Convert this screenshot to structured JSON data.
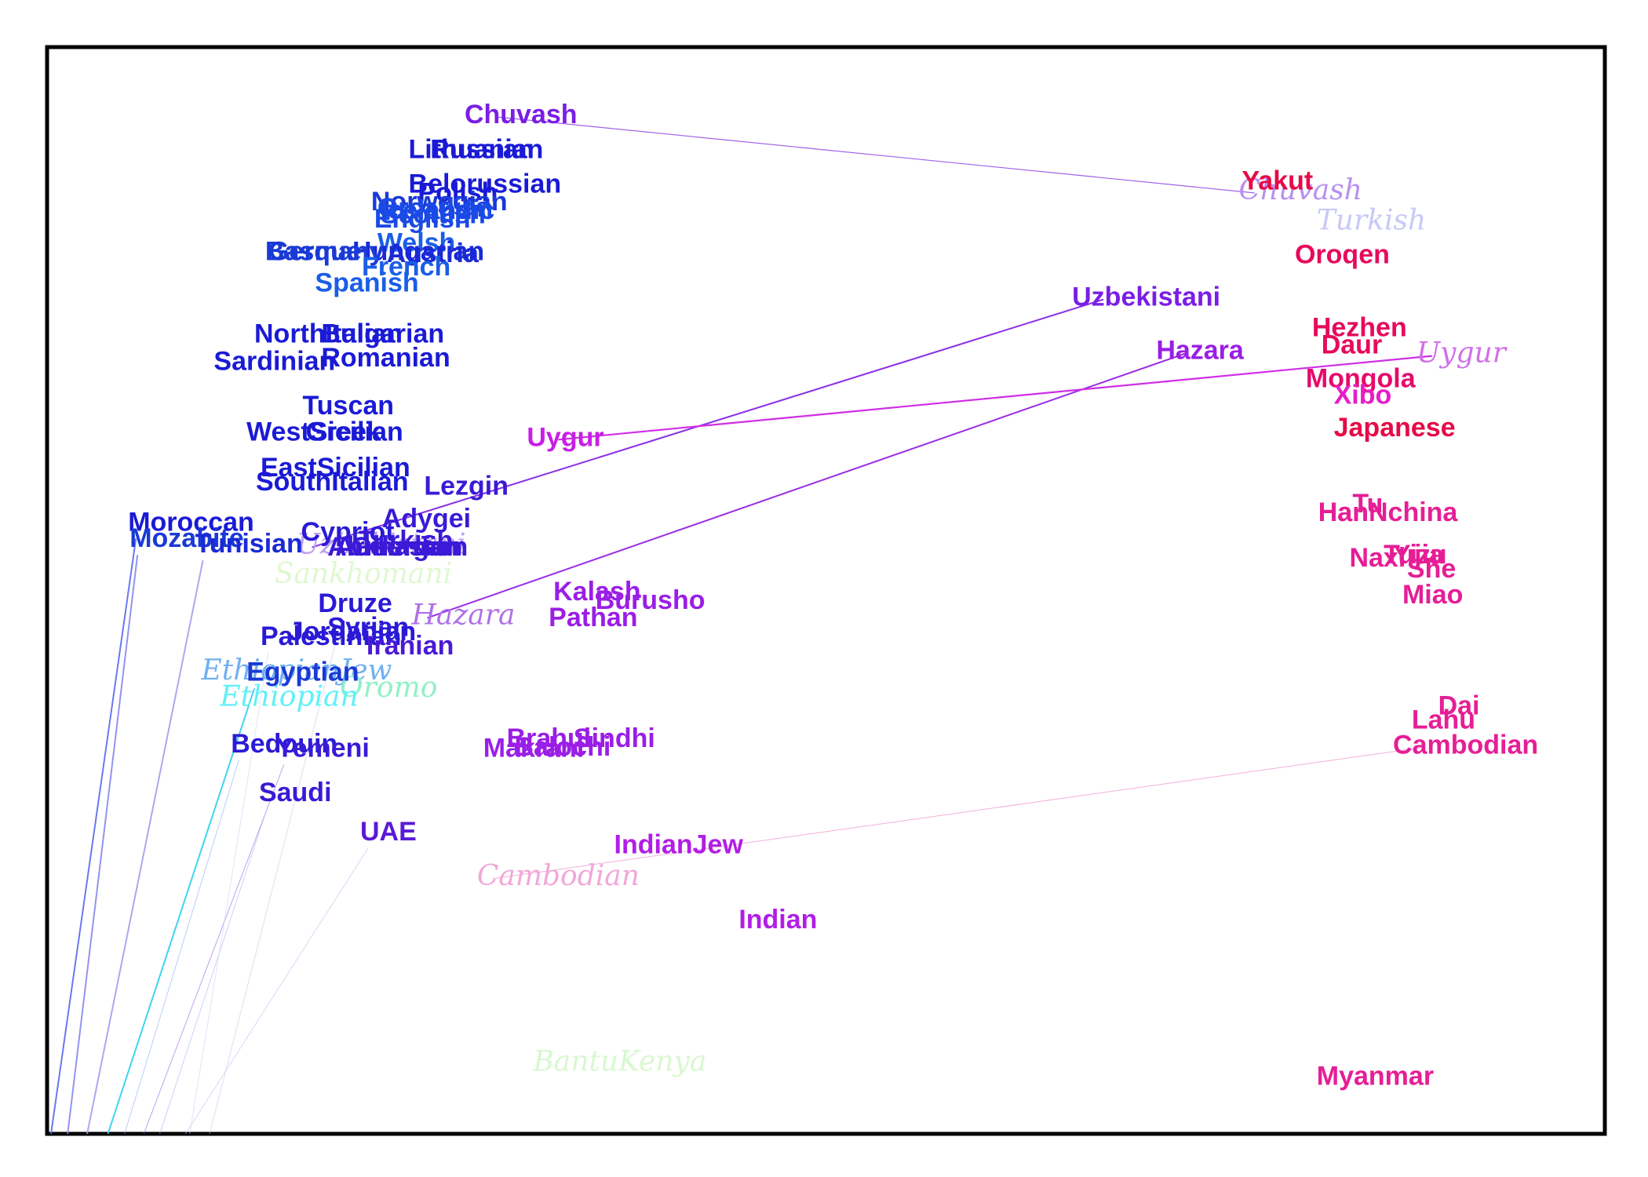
{
  "chart_data": {
    "type": "scatter",
    "title": "",
    "xlabel": "",
    "ylabel": "",
    "xlim": [
      0,
      1
    ],
    "ylim": [
      0,
      1
    ],
    "grid": false,
    "legend": "none",
    "points": [
      {
        "label": "Chuvash",
        "x": 0.268,
        "y": 0.93,
        "color": "#7a1ee6"
      },
      {
        "label": "Lithuanian",
        "x": 0.232,
        "y": 0.898,
        "color": "#1a1ad6"
      },
      {
        "label": "Russian",
        "x": 0.246,
        "y": 0.898,
        "color": "#1a1ad6"
      },
      {
        "label": "Belorussian",
        "x": 0.232,
        "y": 0.866,
        "color": "#1a1ad6"
      },
      {
        "label": "Polish",
        "x": 0.238,
        "y": 0.858,
        "color": "#1a1ad6"
      },
      {
        "label": "Norwegian",
        "x": 0.208,
        "y": 0.85,
        "color": "#1a3ad6"
      },
      {
        "label": "Orcadian",
        "x": 0.212,
        "y": 0.844,
        "color": "#1a4ae6"
      },
      {
        "label": "Icelandic",
        "x": 0.214,
        "y": 0.842,
        "color": "#1a4ae6"
      },
      {
        "label": "Scottish",
        "x": 0.214,
        "y": 0.838,
        "color": "#1a4ae6"
      },
      {
        "label": "English",
        "x": 0.21,
        "y": 0.834,
        "color": "#1a4ae6"
      },
      {
        "label": "Welsh",
        "x": 0.212,
        "y": 0.812,
        "color": "#1a5ee6"
      },
      {
        "label": "Hungarian",
        "x": 0.196,
        "y": 0.804,
        "color": "#1a2ad6"
      },
      {
        "label": "Austria",
        "x": 0.218,
        "y": 0.802,
        "color": "#1a2ad6"
      },
      {
        "label": "Germany",
        "x": 0.142,
        "y": 0.804,
        "color": "#1a3ad6"
      },
      {
        "label": "Basque",
        "x": 0.14,
        "y": 0.804,
        "color": "#1a3ad6"
      },
      {
        "label": "French",
        "x": 0.202,
        "y": 0.79,
        "color": "#1a5ee6"
      },
      {
        "label": "Spanish",
        "x": 0.172,
        "y": 0.775,
        "color": "#1a5ee6"
      },
      {
        "label": "NorthItalian",
        "x": 0.133,
        "y": 0.728,
        "color": "#1a1ad6"
      },
      {
        "label": "Bulgarian",
        "x": 0.176,
        "y": 0.728,
        "color": "#1a1ad6"
      },
      {
        "label": "Romanian",
        "x": 0.176,
        "y": 0.706,
        "color": "#1a1ad6"
      },
      {
        "label": "Sardinian",
        "x": 0.107,
        "y": 0.703,
        "color": "#1a1ad6"
      },
      {
        "label": "Tuscan",
        "x": 0.164,
        "y": 0.662,
        "color": "#1a1ad6"
      },
      {
        "label": "WestSicilian",
        "x": 0.128,
        "y": 0.638,
        "color": "#1a1ad6"
      },
      {
        "label": "Greek",
        "x": 0.166,
        "y": 0.638,
        "color": "#1a1ad6"
      },
      {
        "label": "EastSicilian",
        "x": 0.137,
        "y": 0.605,
        "color": "#1a1ad6"
      },
      {
        "label": "SouthItalian",
        "x": 0.134,
        "y": 0.592,
        "color": "#1a1ad6"
      },
      {
        "label": "Lezgin",
        "x": 0.242,
        "y": 0.588,
        "color": "#3a1ad6"
      },
      {
        "label": "Moroccan",
        "x": 0.052,
        "y": 0.555,
        "color": "#1a1ad6"
      },
      {
        "label": "Mozabite",
        "x": 0.053,
        "y": 0.54,
        "color": "#1a3ad6"
      },
      {
        "label": "Tunisian",
        "x": 0.095,
        "y": 0.535,
        "color": "#1a2ad6"
      },
      {
        "label": "Adygei",
        "x": 0.215,
        "y": 0.558,
        "color": "#3a1ad6"
      },
      {
        "label": "Cypriot",
        "x": 0.163,
        "y": 0.546,
        "color": "#2a1ad6"
      },
      {
        "label": "Turkish",
        "x": 0.2,
        "y": 0.538,
        "color": "#3a1ad6"
      },
      {
        "label": "Abkhasian",
        "x": 0.18,
        "y": 0.532,
        "color": "#3a1ad6"
      },
      {
        "label": "Armenian",
        "x": 0.185,
        "y": 0.532,
        "color": "#3a1ad6"
      },
      {
        "label": "Georgian",
        "x": 0.195,
        "y": 0.532,
        "color": "#3a1ad6"
      },
      {
        "label": "Druze",
        "x": 0.174,
        "y": 0.48,
        "color": "#2a1ad6"
      },
      {
        "label": "Syrian",
        "x": 0.18,
        "y": 0.458,
        "color": "#2a1ad6"
      },
      {
        "label": "Jordanian",
        "x": 0.155,
        "y": 0.454,
        "color": "#2a1ad6"
      },
      {
        "label": "Palestinian",
        "x": 0.137,
        "y": 0.45,
        "color": "#2a1ad6"
      },
      {
        "label": "Iranian",
        "x": 0.205,
        "y": 0.441,
        "color": "#4a1ad6"
      },
      {
        "label": "Egyptian",
        "x": 0.128,
        "y": 0.417,
        "color": "#1a3ad6"
      },
      {
        "label": "Bedouin",
        "x": 0.118,
        "y": 0.351,
        "color": "#2a1ad6"
      },
      {
        "label": "Yemeni",
        "x": 0.147,
        "y": 0.347,
        "color": "#3a1ad6"
      },
      {
        "label": "Saudi",
        "x": 0.136,
        "y": 0.306,
        "color": "#3a1ad6"
      },
      {
        "label": "UAE",
        "x": 0.201,
        "y": 0.27,
        "color": "#5a1ad6"
      },
      {
        "label": "Uygur",
        "x": 0.308,
        "y": 0.633,
        "color": "#c81ee6"
      },
      {
        "label": "Kalash",
        "x": 0.325,
        "y": 0.491,
        "color": "#9a1ee6"
      },
      {
        "label": "Burusho",
        "x": 0.352,
        "y": 0.483,
        "color": "#9a1ee6"
      },
      {
        "label": "Pathan",
        "x": 0.322,
        "y": 0.467,
        "color": "#9a1ee6"
      },
      {
        "label": "Brahui",
        "x": 0.295,
        "y": 0.356,
        "color": "#9a1ee6"
      },
      {
        "label": "Balochi",
        "x": 0.3,
        "y": 0.348,
        "color": "#9a1ee6"
      },
      {
        "label": "Makrani",
        "x": 0.28,
        "y": 0.347,
        "color": "#9a1ee6"
      },
      {
        "label": "Sindhi",
        "x": 0.338,
        "y": 0.356,
        "color": "#9a1ee6"
      },
      {
        "label": "IndianJew",
        "x": 0.364,
        "y": 0.258,
        "color": "#b01ee6"
      },
      {
        "label": "Indian",
        "x": 0.444,
        "y": 0.189,
        "color": "#b01ee6"
      },
      {
        "label": "Uzbekistani",
        "x": 0.658,
        "y": 0.762,
        "color": "#7a1ee6"
      },
      {
        "label": "Hazara",
        "x": 0.712,
        "y": 0.713,
        "color": "#9a1ee6"
      },
      {
        "label": "Yakut",
        "x": 0.767,
        "y": 0.869,
        "color": "#e60a46"
      },
      {
        "label": "Oroqen",
        "x": 0.801,
        "y": 0.801,
        "color": "#e60a5a"
      },
      {
        "label": "Hezhen",
        "x": 0.812,
        "y": 0.734,
        "color": "#e60a5a"
      },
      {
        "label": "Daur",
        "x": 0.818,
        "y": 0.718,
        "color": "#e60a5a"
      },
      {
        "label": "Mongola",
        "x": 0.808,
        "y": 0.687,
        "color": "#e60a6a"
      },
      {
        "label": "Xibo",
        "x": 0.826,
        "y": 0.672,
        "color": "#e61ec8"
      },
      {
        "label": "Japanese",
        "x": 0.826,
        "y": 0.642,
        "color": "#e60a46"
      },
      {
        "label": "Han",
        "x": 0.816,
        "y": 0.564,
        "color": "#e61e96"
      },
      {
        "label": "Tu",
        "x": 0.838,
        "y": 0.572,
        "color": "#e61e96"
      },
      {
        "label": "HanNchina",
        "x": 0.816,
        "y": 0.564,
        "color": "#e61e96"
      },
      {
        "label": "Naxi",
        "x": 0.836,
        "y": 0.522,
        "color": "#e61e96"
      },
      {
        "label": "Yizu",
        "x": 0.864,
        "y": 0.525,
        "color": "#e61e96"
      },
      {
        "label": "Tujia",
        "x": 0.858,
        "y": 0.525,
        "color": "#e61e96"
      },
      {
        "label": "She",
        "x": 0.873,
        "y": 0.512,
        "color": "#e61e96"
      },
      {
        "label": "Miao",
        "x": 0.87,
        "y": 0.488,
        "color": "#e61e96"
      },
      {
        "label": "Dai",
        "x": 0.893,
        "y": 0.386,
        "color": "#e61e96"
      },
      {
        "label": "Lahu",
        "x": 0.876,
        "y": 0.373,
        "color": "#e61e96"
      },
      {
        "label": "Cambodian",
        "x": 0.864,
        "y": 0.35,
        "color": "#e61e96"
      },
      {
        "label": "Myanmar",
        "x": 0.815,
        "y": 0.045,
        "color": "#e61e96"
      }
    ],
    "ghost_labels": [
      {
        "label": "Chuvash",
        "x": 0.765,
        "y": 0.86,
        "color": "#b890f0"
      },
      {
        "label": "Turkish",
        "x": 0.815,
        "y": 0.832,
        "color": "#c8c8f8"
      },
      {
        "label": "Uygur",
        "x": 0.879,
        "y": 0.71,
        "color": "#d070e8"
      },
      {
        "label": "Uzbekistani",
        "x": 0.16,
        "y": 0.534,
        "color": "#c0a0f0"
      },
      {
        "label": "Sankhomani",
        "x": 0.146,
        "y": 0.507,
        "color": "#e0f8d0"
      },
      {
        "label": "Hazara",
        "x": 0.234,
        "y": 0.469,
        "color": "#b070e8"
      },
      {
        "label": "EthiopianJew",
        "x": 0.099,
        "y": 0.418,
        "color": "#70b0f0"
      },
      {
        "label": "Oromo",
        "x": 0.188,
        "y": 0.402,
        "color": "#90f0c8"
      },
      {
        "label": "Ethiopian",
        "x": 0.111,
        "y": 0.394,
        "color": "#60f0f8"
      },
      {
        "label": "Cambodian",
        "x": 0.276,
        "y": 0.229,
        "color": "#f0a8d8"
      },
      {
        "label": "BantuKenya",
        "x": 0.312,
        "y": 0.058,
        "color": "#d8f8d0"
      }
    ],
    "links": [
      {
        "from": "Chuvash",
        "to_ghost": "Chuvash",
        "color": "#a060e8",
        "width": 1.2
      },
      {
        "from": "Uzbekistani",
        "to_ghost": "Uzbekistani",
        "color": "#8a2ee6",
        "width": 2
      },
      {
        "from": "Hazara",
        "to_ghost": "Hazara",
        "color": "#9a2ee6",
        "width": 2
      },
      {
        "from": "Uygur",
        "to_ghost": "Uygur",
        "color": "#d02ee6",
        "width": 2.2
      },
      {
        "from": "Cambodian",
        "to_ghost": "Cambodian",
        "color": "#f0b0d8",
        "width": 1
      }
    ]
  }
}
